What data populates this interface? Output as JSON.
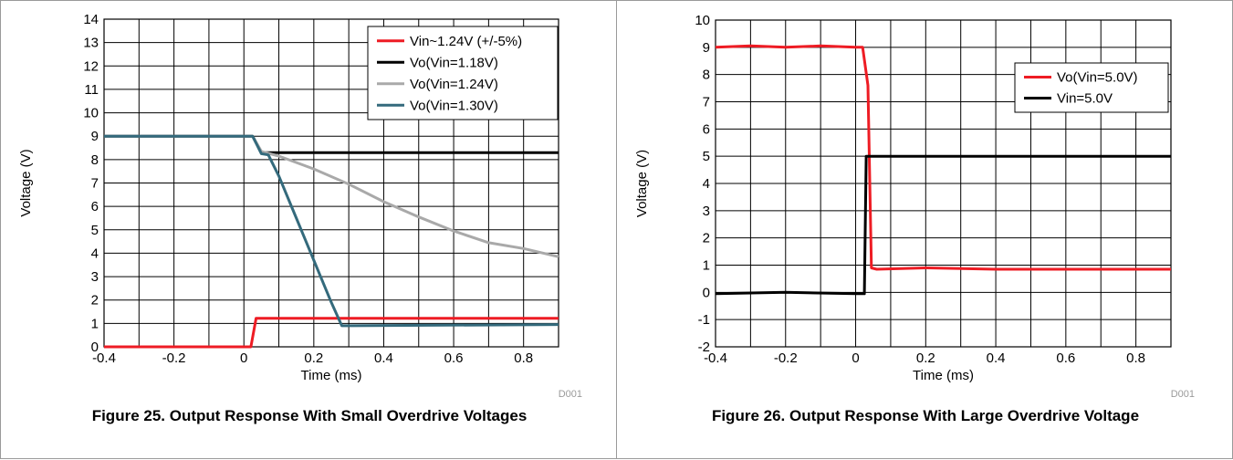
{
  "chart_data": [
    {
      "type": "line",
      "title": "",
      "caption": "Figure 25. Output Response With Small Overdrive Voltages",
      "xlabel": "Time (ms)",
      "ylabel": "Voltage (V)",
      "xlim": [
        -0.4,
        0.9
      ],
      "ylim": [
        0,
        14
      ],
      "x_ticks": [
        -0.4,
        -0.2,
        0,
        0.2,
        0.4,
        0.6,
        0.8
      ],
      "x_tick_labels": [
        "-0.4",
        "-0.2",
        "0",
        "0.2",
        "0.4",
        "0.6",
        "0.8"
      ],
      "y_ticks": [
        0,
        1,
        2,
        3,
        4,
        5,
        6,
        7,
        8,
        9,
        10,
        11,
        12,
        13,
        14
      ],
      "y_tick_labels": [
        "0",
        "1",
        "2",
        "3",
        "4",
        "5",
        "6",
        "7",
        "8",
        "9",
        "10",
        "11",
        "12",
        "13",
        "14"
      ],
      "grid": true,
      "legend_position": "top-right",
      "tag": "D001",
      "series": [
        {
          "name": "Vin~1.24V (+/-5%)",
          "color": "#ee1c24",
          "x": [
            -0.4,
            0.02,
            0.02,
            0.035,
            0.9
          ],
          "y": [
            0,
            0,
            0,
            1.22,
            1.22
          ]
        },
        {
          "name": "Vo(Vin=1.18V)",
          "color": "#000000",
          "x": [
            -0.4,
            0.0,
            0.025,
            0.05,
            0.1,
            0.9
          ],
          "y": [
            9.0,
            9.0,
            9.0,
            8.3,
            8.3,
            8.3
          ]
        },
        {
          "name": "Vo(Vin=1.24V)",
          "color": "#a9a9a9",
          "x": [
            -0.4,
            0.0,
            0.025,
            0.05,
            0.1,
            0.2,
            0.3,
            0.4,
            0.5,
            0.6,
            0.7,
            0.8,
            0.9
          ],
          "y": [
            9.0,
            9.0,
            9.0,
            8.35,
            8.15,
            7.6,
            6.95,
            6.2,
            5.55,
            4.95,
            4.45,
            4.2,
            3.85
          ]
        },
        {
          "name": "Vo(Vin=1.30V)",
          "color": "#346a7c",
          "x": [
            -0.4,
            0.0,
            0.025,
            0.05,
            0.07,
            0.1,
            0.15,
            0.2,
            0.25,
            0.28,
            0.3,
            0.9
          ],
          "y": [
            9.0,
            9.0,
            9.0,
            8.25,
            8.2,
            7.3,
            5.5,
            3.7,
            1.9,
            0.9,
            0.9,
            0.95
          ]
        }
      ]
    },
    {
      "type": "line",
      "title": "",
      "caption": "Figure 26. Output Response With Large Overdrive Voltage",
      "xlabel": "Time (ms)",
      "ylabel": "Voltage (V)",
      "xlim": [
        -0.4,
        0.9
      ],
      "ylim": [
        -2,
        10
      ],
      "x_ticks": [
        -0.4,
        -0.2,
        0,
        0.2,
        0.4,
        0.6,
        0.8
      ],
      "x_tick_labels": [
        "-0.4",
        "-0.2",
        "0",
        "0.2",
        "0.4",
        "0.6",
        "0.8"
      ],
      "y_ticks": [
        -2,
        -1,
        0,
        1,
        2,
        3,
        4,
        5,
        6,
        7,
        8,
        9,
        10
      ],
      "y_tick_labels": [
        "-2",
        "-1",
        "0",
        "1",
        "2",
        "3",
        "4",
        "5",
        "6",
        "7",
        "8",
        "9",
        "10"
      ],
      "grid": true,
      "legend_position": "top-right",
      "tag": "D001",
      "series": [
        {
          "name": "Vo(Vin=5.0V)",
          "color": "#ee1c24",
          "x": [
            -0.4,
            -0.3,
            -0.2,
            -0.1,
            0.0,
            0.02,
            0.035,
            0.045,
            0.06,
            0.2,
            0.4,
            0.6,
            0.8,
            0.9
          ],
          "y": [
            9.0,
            9.05,
            9.0,
            9.05,
            9.0,
            9.0,
            7.6,
            0.9,
            0.85,
            0.9,
            0.85,
            0.85,
            0.85,
            0.85
          ]
        },
        {
          "name": "Vin=5.0V",
          "color": "#000000",
          "x": [
            -0.4,
            -0.2,
            0.0,
            0.025,
            0.03,
            0.05,
            0.2,
            0.4,
            0.6,
            0.8,
            0.9
          ],
          "y": [
            -0.05,
            0.0,
            -0.05,
            -0.05,
            5.0,
            5.0,
            5.0,
            5.0,
            5.0,
            5.0,
            5.0
          ]
        }
      ]
    }
  ]
}
